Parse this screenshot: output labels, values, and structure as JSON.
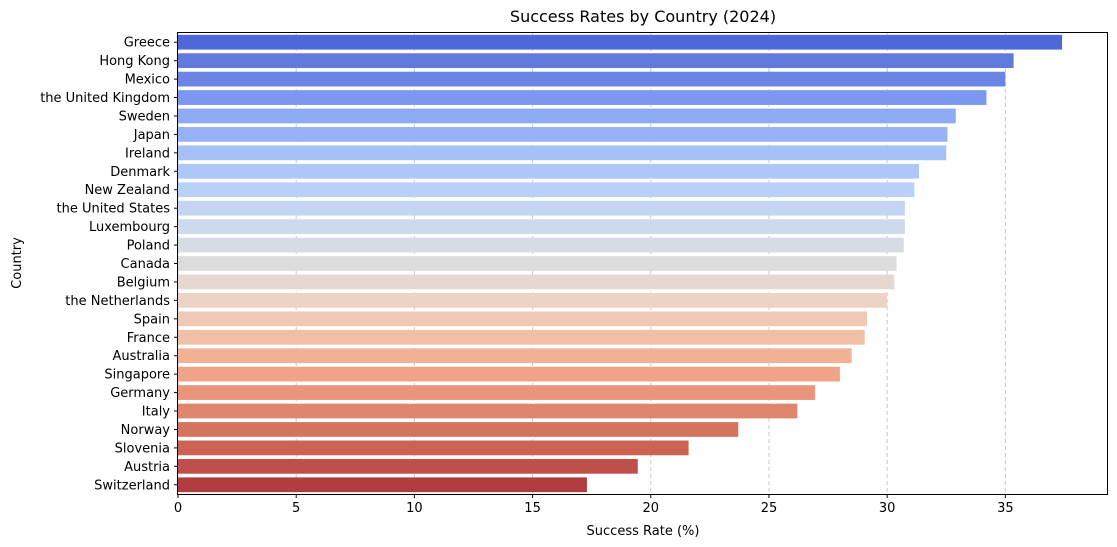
{
  "chart_data": {
    "type": "bar",
    "orientation": "horizontal",
    "title": "Success Rates by Country (2024)",
    "xlabel": "Success Rate (%)",
    "ylabel": "Country",
    "xlim": [
      0,
      39.3
    ],
    "xticks": [
      0,
      5,
      10,
      15,
      20,
      25,
      30,
      35
    ],
    "grid": "x dashed",
    "legend": "none",
    "palette": "coolwarm",
    "categories": [
      "Greece",
      "Hong Kong",
      "Mexico",
      "the United Kingdom",
      "Sweden",
      "Japan",
      "Ireland",
      "Denmark",
      "New Zealand",
      "the United States",
      "Luxembourg",
      "Poland",
      "Canada",
      "Belgium",
      "the Netherlands",
      "Spain",
      "France",
      "Australia",
      "Singapore",
      "Germany",
      "Italy",
      "Norway",
      "Slovenia",
      "Austria",
      "Switzerland"
    ],
    "values": [
      37.4,
      35.35,
      35.0,
      34.2,
      32.9,
      32.55,
      32.5,
      31.35,
      31.15,
      30.75,
      30.75,
      30.7,
      30.4,
      30.3,
      30.0,
      29.15,
      29.05,
      28.5,
      28.0,
      26.95,
      26.2,
      23.7,
      21.6,
      19.45,
      17.3
    ],
    "colors": [
      "#4f68d8",
      "#6079db",
      "#6b85e4",
      "#7c97f0",
      "#8daaf3",
      "#96b2f5",
      "#a4c0f7",
      "#adc7f9",
      "#b9d0f9",
      "#c4d5f3",
      "#cfd9ec",
      "#d6dce4",
      "#dddcdc",
      "#e5d8d1",
      "#ecd3c5",
      "#efc9b5",
      "#f0bfa6",
      "#f2b195",
      "#efa487",
      "#e8957a",
      "#e0866e",
      "#d6735f",
      "#cb6254",
      "#bf4f4b",
      "#b13c40"
    ]
  }
}
